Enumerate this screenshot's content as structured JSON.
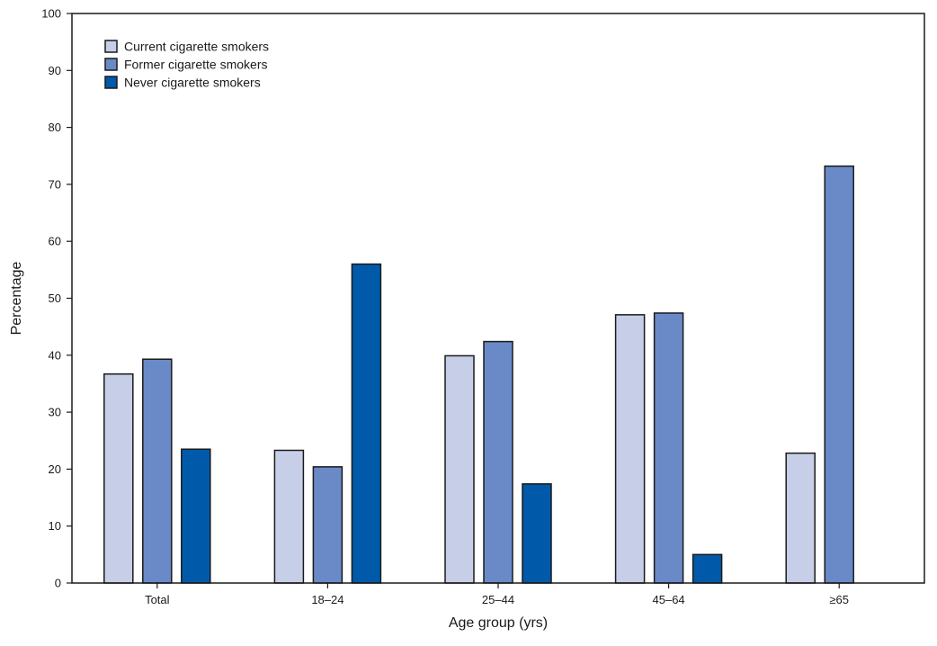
{
  "chart_data": {
    "type": "bar",
    "title": "",
    "xlabel": "Age group (yrs)",
    "ylabel": "Percentage",
    "ylim": [
      0,
      100
    ],
    "yticks": [
      0,
      10,
      20,
      30,
      40,
      50,
      60,
      70,
      80,
      90,
      100
    ],
    "categories": [
      "Total",
      "18–24",
      "25–44",
      "45–64",
      "≥65"
    ],
    "series": [
      {
        "name": "Current cigarette smokers",
        "color": "#c7cfe8",
        "values": [
          36.7,
          23.3,
          39.9,
          47.1,
          22.8
        ]
      },
      {
        "name": "Former cigarette smokers",
        "color": "#6a8ac7",
        "values": [
          39.3,
          20.4,
          42.4,
          47.4,
          73.2
        ]
      },
      {
        "name": "Never cigarette smokers",
        "color": "#005aa9",
        "values": [
          23.5,
          56.0,
          17.4,
          5.0,
          null
        ]
      }
    ],
    "legend_position": "top-left",
    "grid": false
  }
}
